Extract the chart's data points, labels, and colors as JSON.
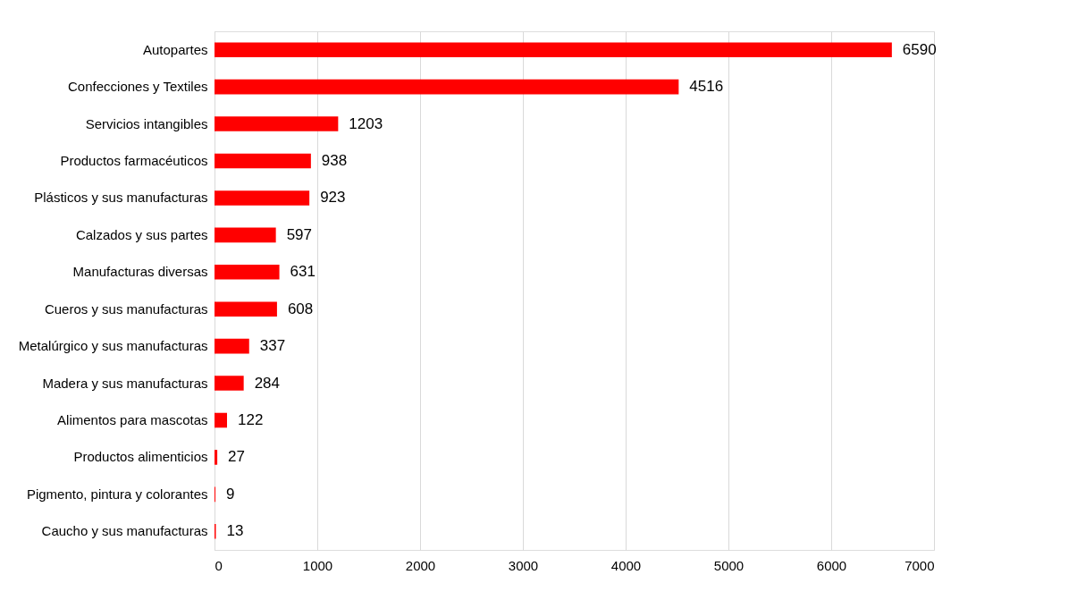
{
  "chart_data": {
    "type": "bar",
    "orientation": "horizontal",
    "categories": [
      "Autopartes",
      "Confecciones y Textiles",
      "Servicios intangibles",
      "Productos farmacéuticos",
      "Plásticos y sus manufacturas",
      "Calzados y sus partes",
      "Manufacturas diversas",
      "Cueros y sus manufacturas",
      "Metalúrgico y sus manufacturas",
      "Madera y sus manufacturas",
      "Alimentos para mascotas",
      "Productos alimenticios",
      "Pigmento, pintura y colorantes",
      "Caucho y sus manufacturas"
    ],
    "values": [
      6590,
      4516,
      1203,
      938,
      923,
      597,
      631,
      608,
      337,
      284,
      122,
      27,
      9,
      13
    ],
    "color": "#ff0000",
    "xlim": [
      0,
      7000
    ],
    "xticks": [
      0,
      1000,
      2000,
      3000,
      4000,
      5000,
      6000,
      7000
    ],
    "grid": "x",
    "data_labels": true
  }
}
